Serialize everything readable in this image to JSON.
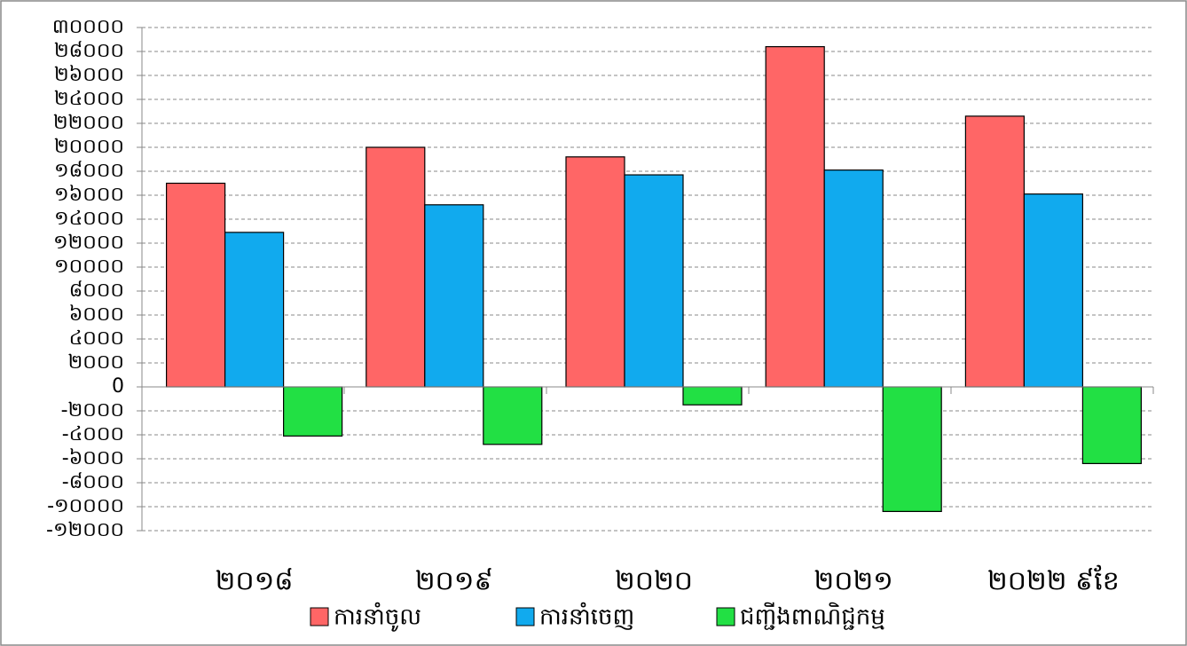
{
  "chart_data": {
    "type": "bar",
    "categories": [
      "២០១៨",
      "២០១៩",
      "២០២០",
      "២០២១",
      "២០២២ ៩ខែ"
    ],
    "series": [
      {
        "name": "ការនាំចូល",
        "color": "#ff6666",
        "values": [
          17000,
          20000,
          19200,
          28400,
          22600
        ]
      },
      {
        "name": "ការនាំចេញ",
        "color": "#11aaee",
        "values": [
          12900,
          15200,
          17700,
          18100,
          16100
        ]
      },
      {
        "name": "ជញ្ជីងពាណិជ្ជកម្ម",
        "color": "#22e044",
        "values": [
          -4100,
          -4800,
          -1500,
          -10400,
          -6400
        ]
      }
    ],
    "ylim": [
      -12000,
      30000
    ],
    "yticks": [
      {
        "value": -12000,
        "label": "-១២០០០"
      },
      {
        "value": -10000,
        "label": "-១០០០០"
      },
      {
        "value": -8000,
        "label": "-៨០០០"
      },
      {
        "value": -6000,
        "label": "-៦០០០"
      },
      {
        "value": -4000,
        "label": "-៤០០០"
      },
      {
        "value": -2000,
        "label": "-២០០០"
      },
      0,
      {
        "value": 2000,
        "label": "២០០០"
      },
      {
        "value": 4000,
        "label": "៤០០០"
      },
      {
        "value": 6000,
        "label": "៦០០០"
      },
      {
        "value": 8000,
        "label": "៨០០០"
      },
      {
        "value": 10000,
        "label": "១០០០០"
      },
      {
        "value": 12000,
        "label": "១២០០០"
      },
      {
        "value": 14000,
        "label": "១៤០០០"
      },
      {
        "value": 16000,
        "label": "១៦០០០"
      },
      {
        "value": 18000,
        "label": "១៨០០០"
      },
      {
        "value": 20000,
        "label": "២០០០០"
      },
      {
        "value": 22000,
        "label": "២២០០០"
      },
      {
        "value": 24000,
        "label": "២៤០០០"
      },
      {
        "value": 26000,
        "label": "២៦០០០"
      },
      {
        "value": 28000,
        "label": "២៨០០០"
      },
      {
        "value": 30000,
        "label": "៣០០០០"
      }
    ],
    "grid": true
  }
}
